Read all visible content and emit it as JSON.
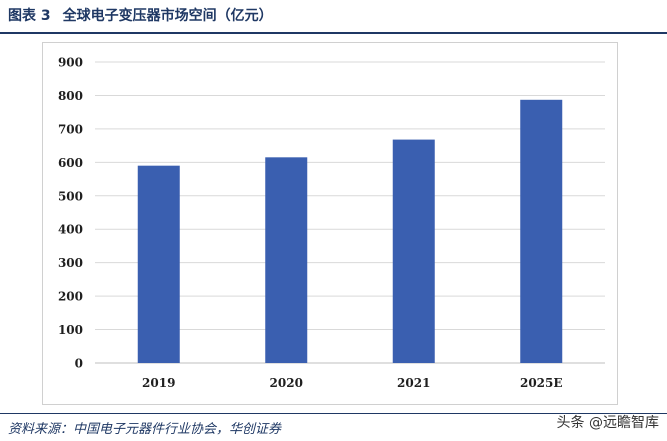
{
  "header": {
    "figure_label": "图表 3",
    "title": "全球电子变压器市场空间（亿元）"
  },
  "footer": {
    "source": "资料来源：中国电子元器件行业协会，华创证券",
    "watermark": "头条 @远瞻智库"
  },
  "colors": {
    "bar": "#3a5fb0",
    "grid": "#d9d9d9",
    "text": "#1f1f1f",
    "brand": "#1f3864"
  },
  "chart_data": {
    "type": "bar",
    "categories": [
      "2019",
      "2020",
      "2021",
      "2025E"
    ],
    "values": [
      590,
      615,
      668,
      787
    ],
    "title": "",
    "xlabel": "",
    "ylabel": "",
    "ylim": [
      0,
      900
    ],
    "yticks": [
      0,
      100,
      200,
      300,
      400,
      500,
      600,
      700,
      800,
      900
    ],
    "grid": true,
    "legend": "none"
  }
}
